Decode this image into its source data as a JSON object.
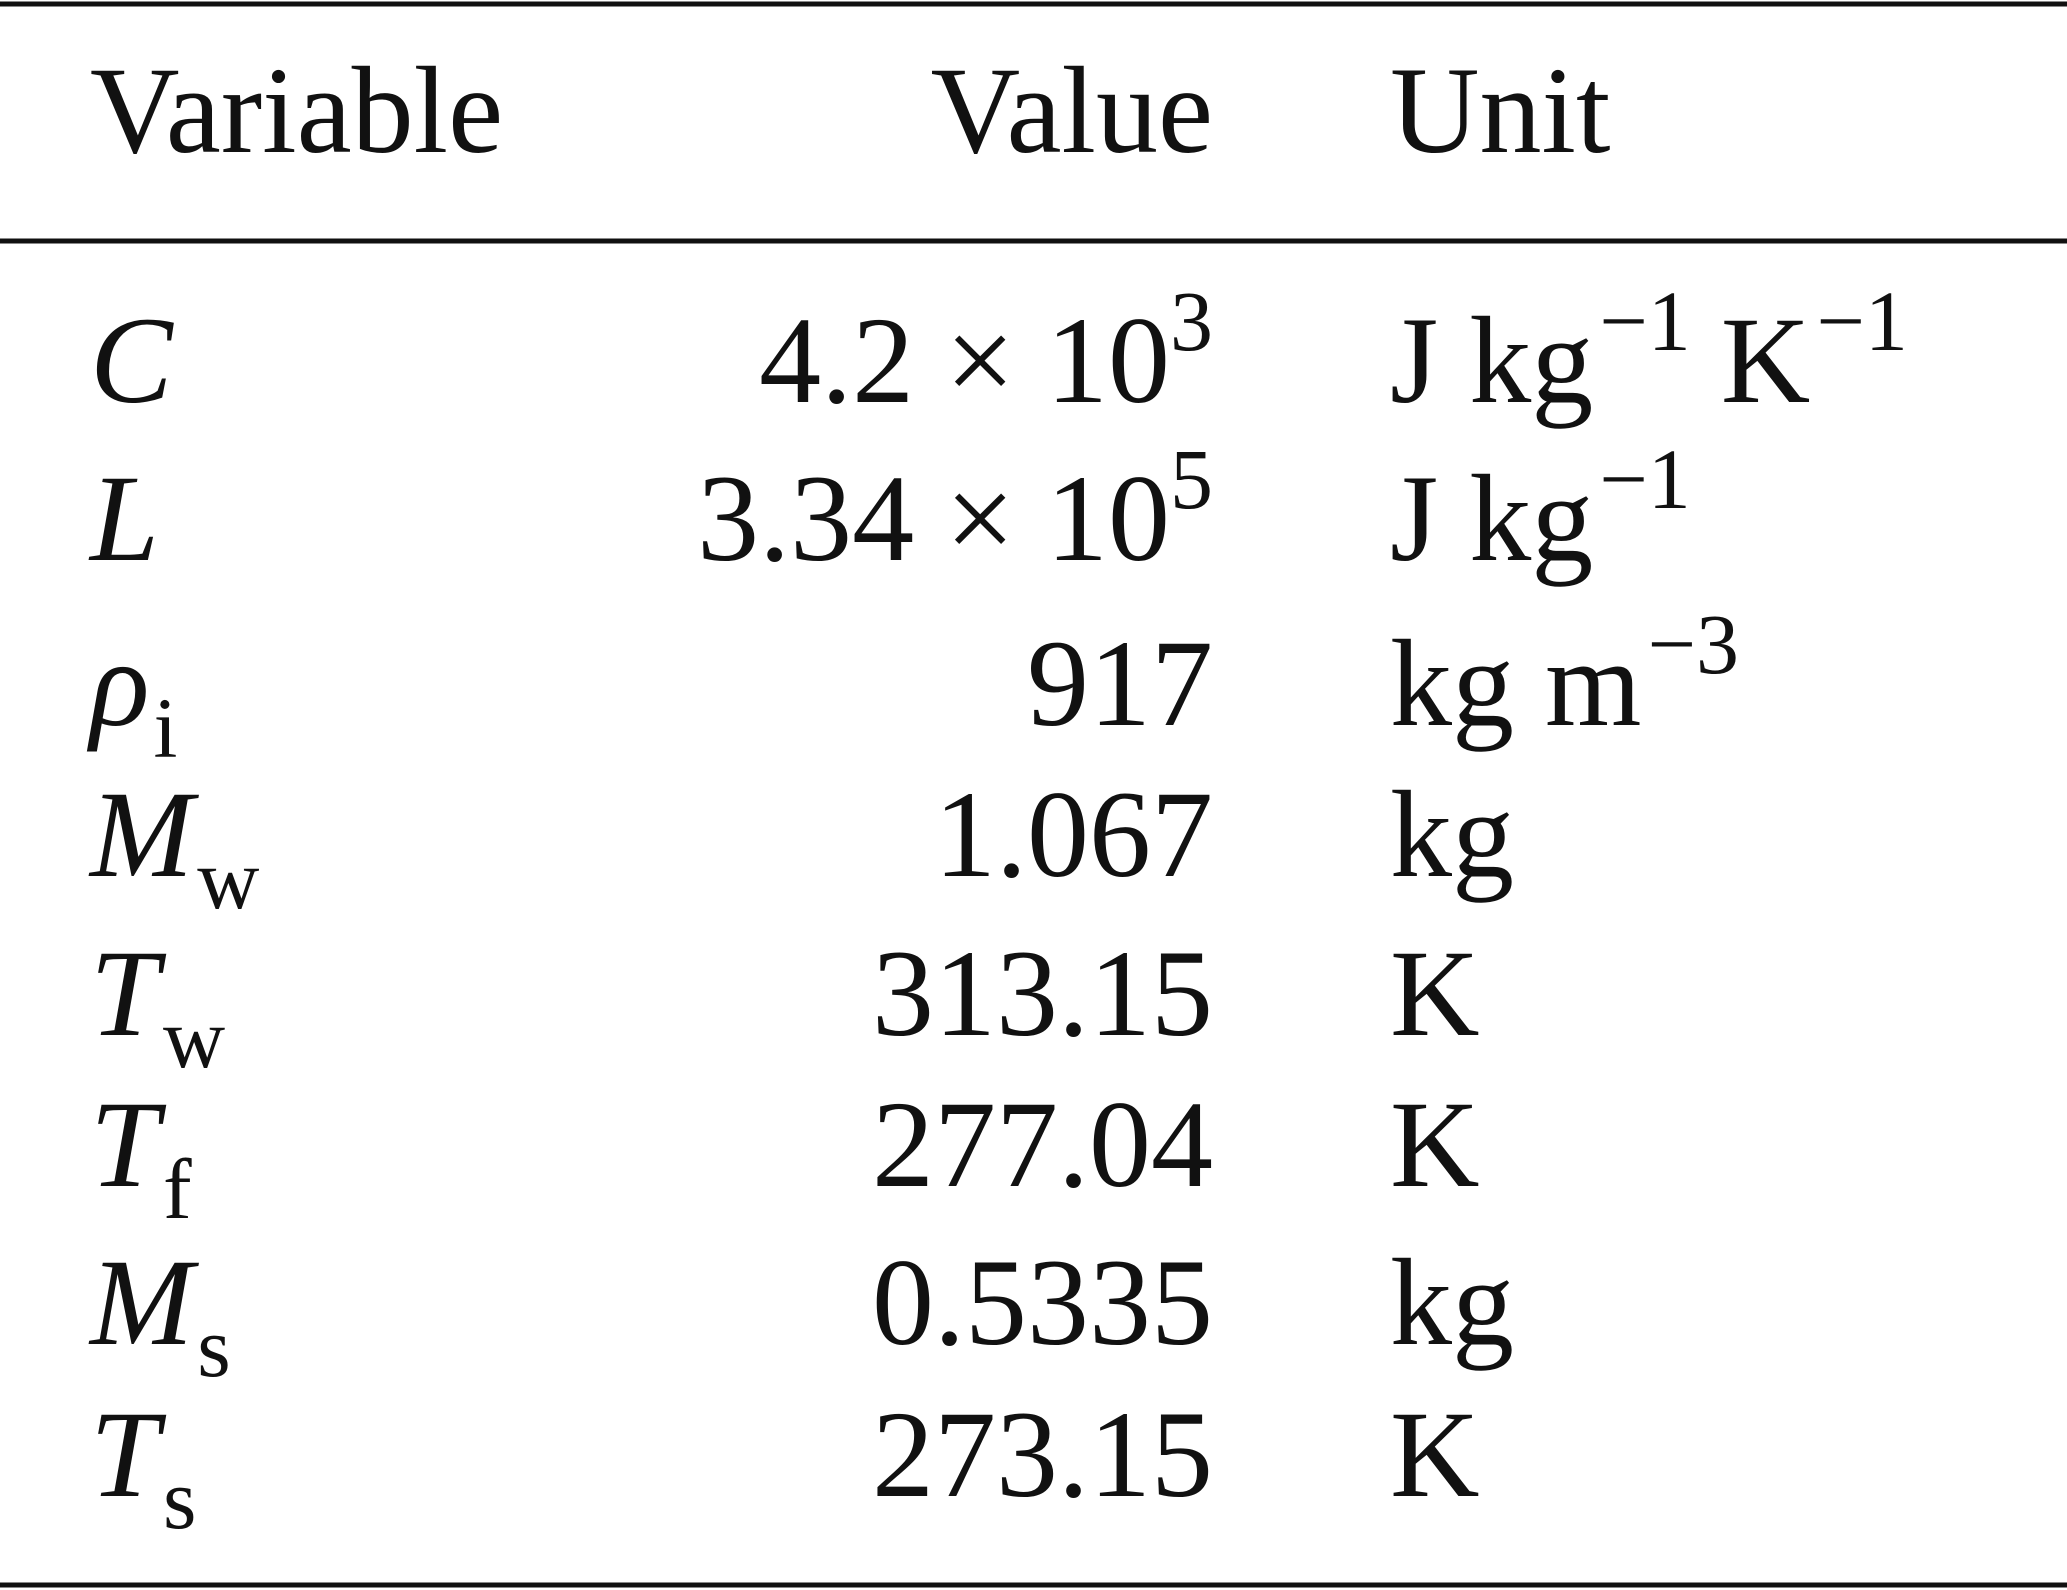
{
  "table": {
    "header": [
      "Variable",
      "Value",
      "Unit"
    ],
    "rows": [
      {
        "variable": {
          "symbol": "C"
        },
        "value": {
          "text": "4.2 × 10",
          "exponent": "3"
        },
        "unit": [
          {
            "text": "J kg",
            "sup": "−1"
          },
          {
            "text": "K",
            "sup": "−1"
          }
        ]
      },
      {
        "variable": {
          "symbol": "L"
        },
        "value": {
          "text": "3.34 × 10",
          "exponent": "5"
        },
        "unit": [
          {
            "text": "J kg",
            "sup": "−1"
          }
        ]
      },
      {
        "variable": {
          "symbol": "ρ",
          "subscript": "i"
        },
        "value": {
          "text": "917"
        },
        "unit": [
          {
            "text": "kg m",
            "sup": "−3"
          }
        ]
      },
      {
        "variable": {
          "symbol": "M",
          "subscript": "w"
        },
        "value": {
          "text": "1.067"
        },
        "unit": [
          {
            "text": "kg"
          }
        ]
      },
      {
        "variable": {
          "symbol": "T",
          "subscript": "w"
        },
        "value": {
          "text": "313.15"
        },
        "unit": [
          {
            "text": "K"
          }
        ]
      },
      {
        "variable": {
          "symbol": "T",
          "subscript": "f"
        },
        "value": {
          "text": "277.04"
        },
        "unit": [
          {
            "text": "K"
          }
        ]
      },
      {
        "variable": {
          "symbol": "M",
          "subscript": "s"
        },
        "value": {
          "text": "0.5335"
        },
        "unit": [
          {
            "text": "kg"
          }
        ]
      },
      {
        "variable": {
          "symbol": "T",
          "subscript": "s"
        },
        "value": {
          "text": "273.15"
        },
        "unit": [
          {
            "text": "K"
          }
        ]
      }
    ]
  }
}
